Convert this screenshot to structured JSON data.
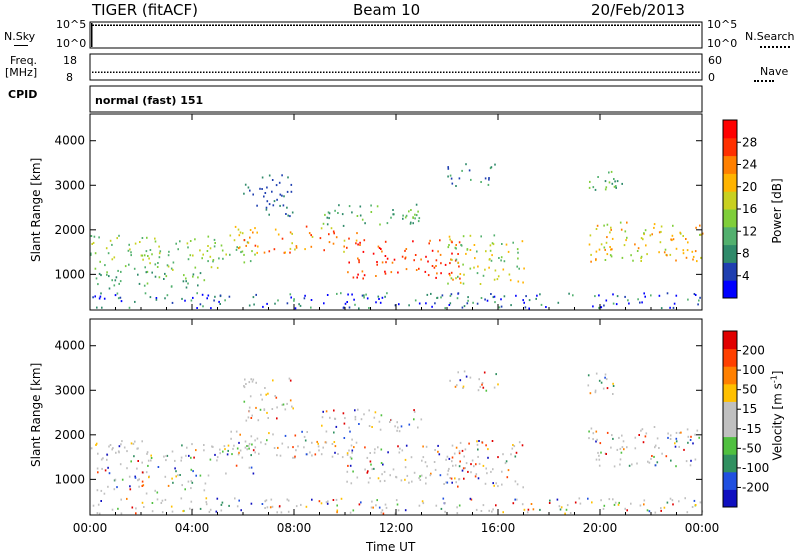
{
  "header": {
    "title": "TIGER (fitACF)",
    "beam": "Beam 10",
    "date": "20/Feb/2013"
  },
  "strips": {
    "nsky_label": "N.Sky",
    "nsky_ticks": [
      "10^5",
      "10^0"
    ],
    "nsearch_label": "N.Search",
    "nsearch_ticks": [
      "10^5",
      "10^0"
    ],
    "freq_label": "Freq.",
    "freq_unit": "[MHz]",
    "freq_ticks": [
      "18",
      "8"
    ],
    "nave_label": "Nave",
    "nave_ticks": [
      "60",
      "0"
    ],
    "cpid_label": "CPID",
    "cpid_value": "normal (fast) 151"
  },
  "chart_data": [
    {
      "type": "heatmap",
      "panel": "power",
      "ylabel": "Slant Range [km]",
      "xlabel": "",
      "x_ticks": [
        "00:00",
        "04:00",
        "08:00",
        "12:00",
        "16:00",
        "20:00",
        "00:00"
      ],
      "y_ticks": [
        1000,
        2000,
        3000,
        4000
      ],
      "ylim": [
        200,
        4600
      ],
      "xlim_hours": [
        0,
        24
      ],
      "colorbar": {
        "label": "Power [dB]",
        "ticks": [
          "28",
          "24",
          "20",
          "16",
          "12",
          "8",
          "4"
        ],
        "colors": [
          "#0000ff",
          "#1f3fb0",
          "#2f8a6a",
          "#52b06e",
          "#7fce3a",
          "#c8d020",
          "#ffb400",
          "#ff8000",
          "#ff3000",
          "#ff0000"
        ]
      }
    },
    {
      "type": "heatmap",
      "panel": "velocity",
      "ylabel": "Slant Range [km]",
      "xlabel": "Time UT",
      "x_ticks": [
        "00:00",
        "04:00",
        "08:00",
        "12:00",
        "16:00",
        "20:00",
        "00:00"
      ],
      "y_ticks": [
        1000,
        2000,
        3000,
        4000
      ],
      "ylim": [
        200,
        4600
      ],
      "xlim_hours": [
        0,
        24
      ],
      "colorbar": {
        "label": "Velocity [m s",
        "label_sup": "-1",
        "label_end": "]",
        "ticks": [
          "200",
          "100",
          "50",
          "15",
          "-15",
          "-50",
          "-100",
          "-200"
        ],
        "colors": [
          "#1010c0",
          "#2050e0",
          "#309060",
          "#50c040",
          "#c0c0c0",
          "#c0c0c0",
          "#ffc000",
          "#ff8000",
          "#ff4000",
          "#e00000"
        ]
      }
    }
  ]
}
